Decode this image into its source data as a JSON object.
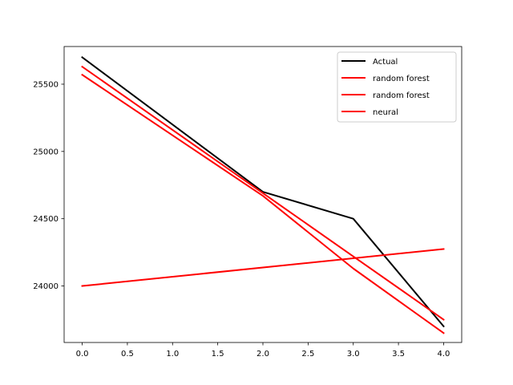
{
  "chart_data": {
    "type": "line",
    "title": "",
    "xlabel": "",
    "ylabel": "",
    "xlim": [
      -0.2,
      4.2
    ],
    "ylim": [
      23580,
      25780
    ],
    "grid": false,
    "legend_placement": "top-right",
    "x_ticks": [
      {
        "value": 0.0,
        "label": "0.0"
      },
      {
        "value": 0.5,
        "label": "0.5"
      },
      {
        "value": 1.0,
        "label": "1.0"
      },
      {
        "value": 1.5,
        "label": "1.5"
      },
      {
        "value": 2.0,
        "label": "2.0"
      },
      {
        "value": 2.5,
        "label": "2.5"
      },
      {
        "value": 3.0,
        "label": "3.0"
      },
      {
        "value": 3.5,
        "label": "3.5"
      },
      {
        "value": 4.0,
        "label": "4.0"
      }
    ],
    "y_ticks": [
      {
        "value": 24000,
        "label": "24000"
      },
      {
        "value": 24500,
        "label": "24500"
      },
      {
        "value": 25000,
        "label": "25000"
      },
      {
        "value": 25500,
        "label": "25500"
      }
    ],
    "series": [
      {
        "name": "Actual",
        "color": "#000000",
        "x": [
          0,
          2,
          3,
          4
        ],
        "y": [
          25700,
          24700,
          24500,
          23700
        ]
      },
      {
        "name": "random forest",
        "color": "#ff0000",
        "x": [
          0,
          2,
          3,
          4
        ],
        "y": [
          25630,
          24690,
          24220,
          23750
        ]
      },
      {
        "name": "random forest",
        "color": "#ff0000",
        "x": [
          0,
          2,
          3,
          4
        ],
        "y": [
          25570,
          24670,
          24130,
          23650
        ]
      },
      {
        "name": "neural",
        "color": "#ff0000",
        "x": [
          0,
          4
        ],
        "y": [
          24000,
          24275
        ]
      }
    ]
  }
}
